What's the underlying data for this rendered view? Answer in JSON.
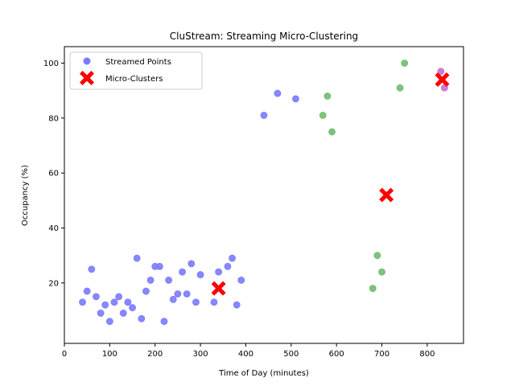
{
  "chart_data": {
    "type": "scatter",
    "title": "CluStream: Streaming Micro-Clustering",
    "xlabel": "Time of Day (minutes)",
    "ylabel": "Occupancy (%)",
    "xlim": [
      0,
      880
    ],
    "ylim": [
      -2,
      106
    ],
    "xticks": [
      0,
      100,
      200,
      300,
      400,
      500,
      600,
      700,
      800
    ],
    "yticks": [
      20,
      40,
      60,
      80,
      100
    ],
    "grid": false,
    "legend_position": "top-left",
    "legend": [
      {
        "label": "Streamed Points",
        "marker": "circle"
      },
      {
        "label": "Micro-Clusters",
        "marker": "x"
      }
    ],
    "series": [
      {
        "name": "Streamed Points",
        "color": "#7a7aff",
        "groups": [
          {
            "color": "#7a7aff",
            "points": [
              [
                40,
                13
              ],
              [
                50,
                17
              ],
              [
                60,
                25
              ],
              [
                70,
                15
              ],
              [
                80,
                9
              ],
              [
                90,
                12
              ],
              [
                100,
                6
              ],
              [
                110,
                13
              ],
              [
                120,
                15
              ],
              [
                130,
                9
              ],
              [
                140,
                13
              ],
              [
                150,
                11
              ],
              [
                160,
                29
              ],
              [
                170,
                7
              ],
              [
                180,
                17
              ],
              [
                190,
                21
              ],
              [
                200,
                26
              ],
              [
                210,
                26
              ],
              [
                220,
                6
              ],
              [
                230,
                21
              ],
              [
                240,
                14
              ],
              [
                250,
                16
              ],
              [
                260,
                24
              ],
              [
                270,
                16
              ],
              [
                280,
                27
              ],
              [
                290,
                13
              ],
              [
                300,
                23
              ],
              [
                330,
                13
              ],
              [
                340,
                24
              ],
              [
                360,
                26
              ],
              [
                370,
                29
              ],
              [
                380,
                12
              ],
              [
                390,
                21
              ],
              [
                440,
                81
              ],
              [
                470,
                89
              ],
              [
                510,
                87
              ]
            ]
          },
          {
            "color": "#6ebd6e",
            "points": [
              [
                570,
                81
              ],
              [
                580,
                88
              ],
              [
                590,
                75
              ],
              [
                680,
                18
              ],
              [
                690,
                30
              ],
              [
                700,
                24
              ],
              [
                740,
                91
              ],
              [
                750,
                100
              ]
            ]
          },
          {
            "color": "#c66ed0",
            "points": [
              [
                830,
                97
              ],
              [
                838,
                91
              ]
            ]
          }
        ]
      },
      {
        "name": "Micro-Clusters",
        "color": "#ff0000",
        "points": [
          [
            340,
            18
          ],
          [
            710,
            52
          ],
          [
            833,
            94
          ]
        ]
      }
    ]
  }
}
